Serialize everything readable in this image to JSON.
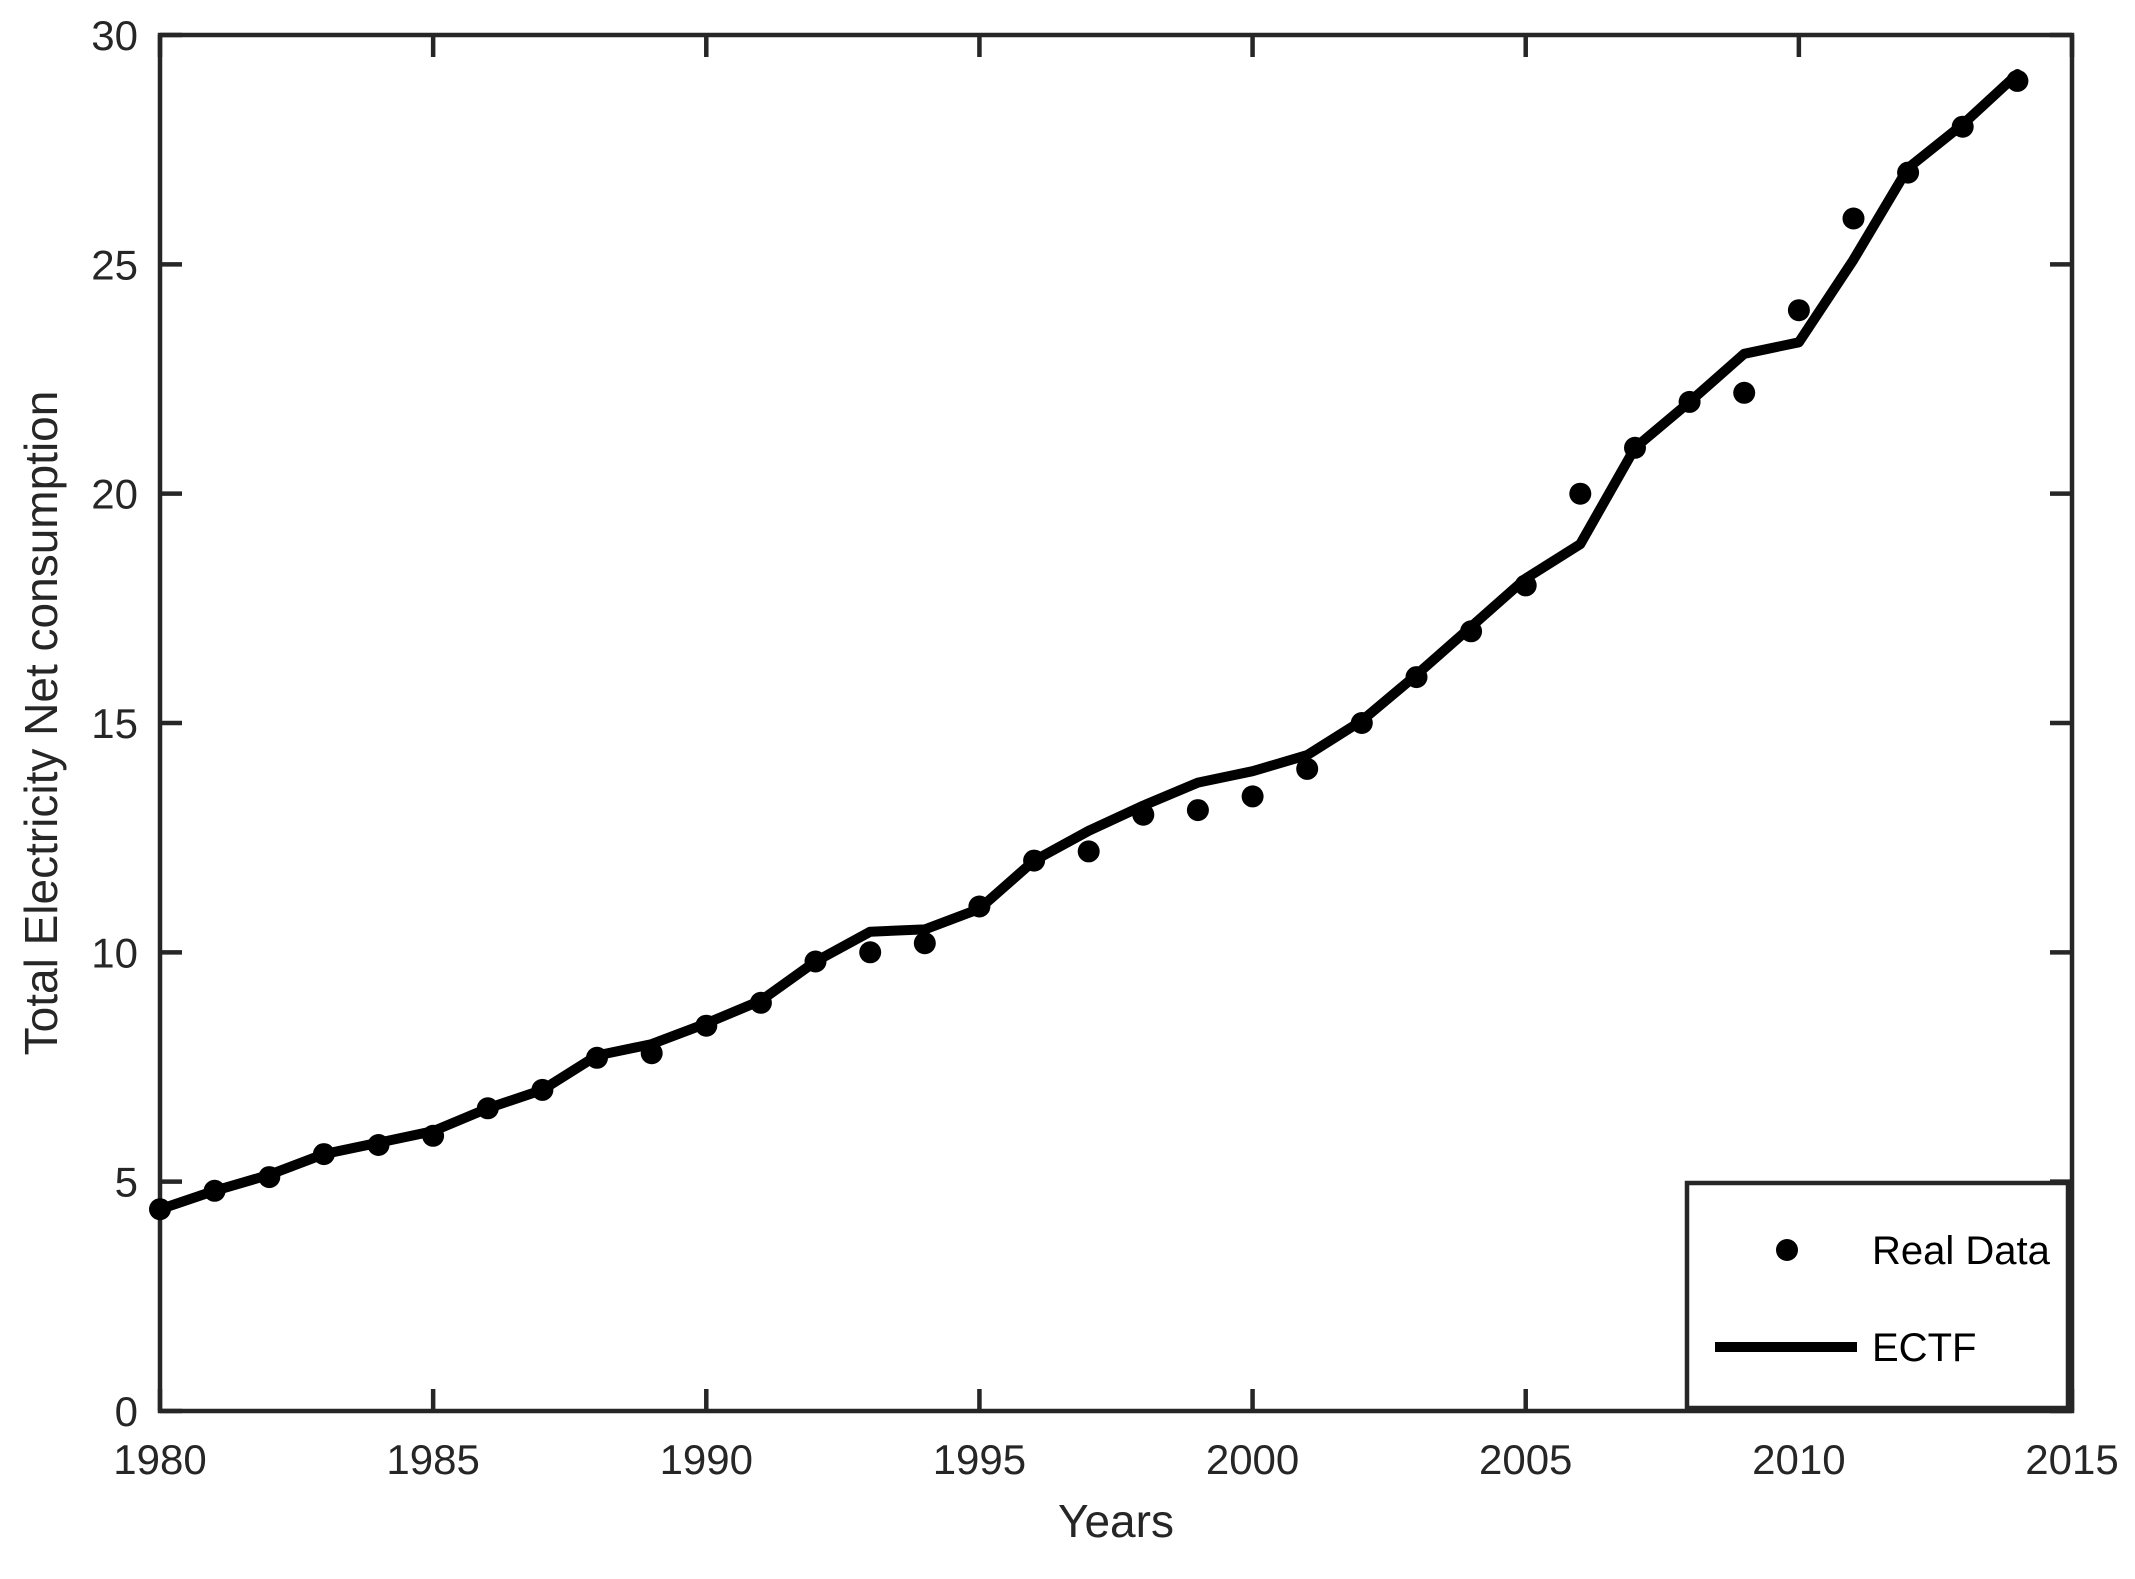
{
  "figure": {
    "background": "#ffffff",
    "axis_color": "#262626",
    "data_color": "#000000"
  },
  "axes": {
    "xlabel": "Years",
    "ylabel": "Total Electricity Net consumption",
    "xlim": [
      1980,
      2015
    ],
    "ylim": [
      0,
      30
    ],
    "xticks": [
      1980,
      1985,
      1990,
      1995,
      2000,
      2005,
      2010,
      2015
    ],
    "yticks": [
      0,
      5,
      10,
      15,
      20,
      25,
      30
    ]
  },
  "legend": {
    "position": "lower right",
    "items": [
      {
        "label": "Real Data",
        "marker": "dot"
      },
      {
        "label": "ECTF",
        "marker": "line"
      }
    ]
  },
  "chart_data": {
    "type": "line",
    "title": "",
    "xlabel": "Years",
    "ylabel": "Total Electricity Net consumption",
    "xlim": [
      1980,
      2015
    ],
    "ylim": [
      0,
      30
    ],
    "grid": false,
    "legend_position": "lower right",
    "x": [
      1980,
      1981,
      1982,
      1983,
      1984,
      1985,
      1986,
      1987,
      1988,
      1989,
      1990,
      1991,
      1992,
      1993,
      1994,
      1995,
      1996,
      1997,
      1998,
      1999,
      2000,
      2001,
      2002,
      2003,
      2004,
      2005,
      2006,
      2007,
      2008,
      2009,
      2010,
      2011,
      2012,
      2013,
      2014
    ],
    "series": [
      {
        "name": "Real Data",
        "type": "scatter",
        "marker": "filled-circle",
        "color": "#000000",
        "values": [
          4.4,
          4.8,
          5.1,
          5.6,
          5.8,
          6.0,
          6.6,
          7.0,
          7.7,
          7.8,
          8.4,
          8.9,
          9.8,
          10.0,
          10.2,
          11.0,
          12.0,
          12.2,
          13.0,
          13.1,
          13.4,
          14.0,
          15.0,
          16.0,
          17.0,
          18.0,
          20.0,
          21.0,
          22.0,
          22.2,
          24.0,
          26.0,
          27.0,
          28.0,
          29.0
        ]
      },
      {
        "name": "ECTF",
        "type": "line",
        "color": "#000000",
        "values": [
          4.4,
          4.8,
          5.15,
          5.6,
          5.85,
          6.1,
          6.6,
          7.0,
          7.75,
          8.0,
          8.45,
          8.95,
          9.8,
          10.45,
          10.5,
          10.95,
          12.0,
          12.65,
          13.2,
          13.7,
          13.95,
          14.3,
          15.05,
          16.05,
          17.1,
          18.15,
          18.9,
          21.0,
          22.0,
          23.05,
          23.3,
          25.1,
          27.1,
          28.05,
          29.15
        ]
      }
    ]
  }
}
